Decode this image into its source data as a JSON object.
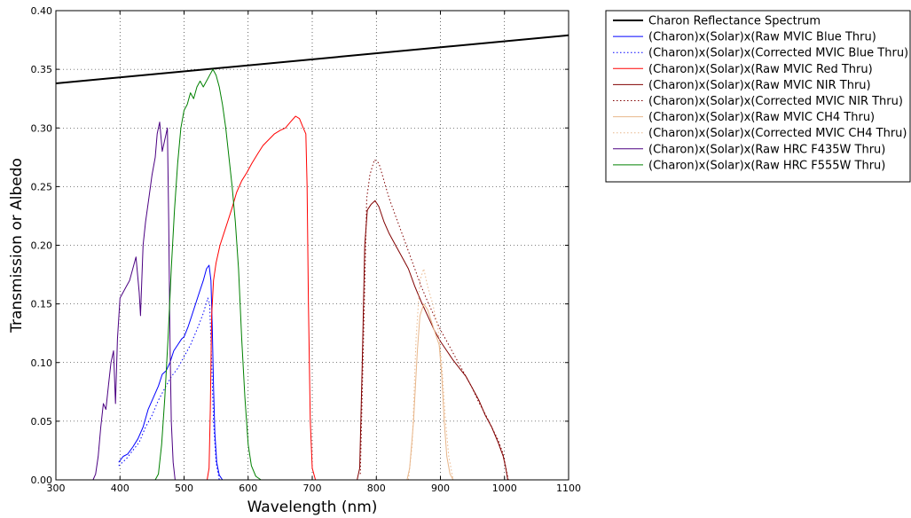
{
  "chart_data": {
    "type": "line",
    "title": "",
    "xlabel": "Wavelength (nm)",
    "ylabel": "Transmission or Albedo",
    "xlim": [
      300,
      1100
    ],
    "ylim": [
      0.0,
      0.4
    ],
    "grid": true,
    "legend_position": "outside-top-right",
    "x_ticks": [
      300,
      400,
      500,
      600,
      700,
      800,
      900,
      1000,
      1100
    ],
    "y_ticks": [
      0.0,
      0.05,
      0.1,
      0.15,
      0.2,
      0.25,
      0.3,
      0.35,
      0.4
    ],
    "x_tick_labels": [
      "300",
      "400",
      "500",
      "600",
      "700",
      "800",
      "900",
      "1000",
      "1100"
    ],
    "y_tick_labels": [
      "0.00",
      "0.05",
      "0.10",
      "0.15",
      "0.20",
      "0.25",
      "0.30",
      "0.35",
      "0.40"
    ],
    "series": [
      {
        "name": "Charon Reflectance Spectrum",
        "color": "#000000",
        "style": "solid",
        "width": 2,
        "points": [
          [
            300,
            0.338
          ],
          [
            1100,
            0.379
          ]
        ]
      },
      {
        "name": "(Charon)x(Solar)x(Raw MVIC Blue Thru)",
        "color": "#0000ff",
        "style": "solid",
        "width": 1,
        "points": [
          [
            398,
            0.015
          ],
          [
            405,
            0.02
          ],
          [
            412,
            0.022
          ],
          [
            420,
            0.028
          ],
          [
            428,
            0.035
          ],
          [
            436,
            0.045
          ],
          [
            444,
            0.06
          ],
          [
            452,
            0.07
          ],
          [
            460,
            0.08
          ],
          [
            466,
            0.09
          ],
          [
            472,
            0.093
          ],
          [
            478,
            0.1
          ],
          [
            484,
            0.11
          ],
          [
            490,
            0.115
          ],
          [
            496,
            0.12
          ],
          [
            500,
            0.122
          ],
          [
            506,
            0.13
          ],
          [
            512,
            0.14
          ],
          [
            518,
            0.15
          ],
          [
            524,
            0.16
          ],
          [
            530,
            0.17
          ],
          [
            535,
            0.18
          ],
          [
            539,
            0.183
          ],
          [
            542,
            0.17
          ],
          [
            544,
            0.13
          ],
          [
            546,
            0.08
          ],
          [
            548,
            0.04
          ],
          [
            551,
            0.015
          ],
          [
            555,
            0.004
          ],
          [
            560,
            0.0
          ]
        ]
      },
      {
        "name": "(Charon)x(Solar)x(Corrected MVIC Blue Thru)",
        "color": "#0000ff",
        "style": "dotted",
        "width": 1,
        "points": [
          [
            398,
            0.012
          ],
          [
            410,
            0.018
          ],
          [
            420,
            0.025
          ],
          [
            430,
            0.032
          ],
          [
            440,
            0.045
          ],
          [
            450,
            0.055
          ],
          [
            460,
            0.068
          ],
          [
            470,
            0.078
          ],
          [
            480,
            0.088
          ],
          [
            490,
            0.095
          ],
          [
            500,
            0.105
          ],
          [
            510,
            0.115
          ],
          [
            520,
            0.128
          ],
          [
            530,
            0.142
          ],
          [
            537,
            0.155
          ],
          [
            540,
            0.15
          ],
          [
            543,
            0.1
          ],
          [
            546,
            0.05
          ],
          [
            550,
            0.015
          ],
          [
            555,
            0.0
          ]
        ]
      },
      {
        "name": "(Charon)x(Solar)x(Raw MVIC Red Thru)",
        "color": "#ff0000",
        "style": "solid",
        "width": 1,
        "points": [
          [
            536,
            0.0
          ],
          [
            539,
            0.01
          ],
          [
            541,
            0.06
          ],
          [
            543,
            0.14
          ],
          [
            546,
            0.17
          ],
          [
            550,
            0.185
          ],
          [
            556,
            0.2
          ],
          [
            562,
            0.21
          ],
          [
            568,
            0.22
          ],
          [
            575,
            0.232
          ],
          [
            582,
            0.245
          ],
          [
            590,
            0.255
          ],
          [
            598,
            0.262
          ],
          [
            606,
            0.27
          ],
          [
            615,
            0.278
          ],
          [
            623,
            0.285
          ],
          [
            632,
            0.29
          ],
          [
            641,
            0.295
          ],
          [
            650,
            0.298
          ],
          [
            658,
            0.3
          ],
          [
            666,
            0.305
          ],
          [
            674,
            0.31
          ],
          [
            680,
            0.308
          ],
          [
            686,
            0.3
          ],
          [
            690,
            0.295
          ],
          [
            692,
            0.25
          ],
          [
            694,
            0.15
          ],
          [
            697,
            0.05
          ],
          [
            700,
            0.01
          ],
          [
            705,
            0.0
          ]
        ]
      },
      {
        "name": "(Charon)x(Solar)x(Raw MVIC NIR Thru)",
        "color": "#800000",
        "style": "solid",
        "width": 1,
        "points": [
          [
            770,
            0.0
          ],
          [
            774,
            0.01
          ],
          [
            778,
            0.1
          ],
          [
            782,
            0.2
          ],
          [
            786,
            0.23
          ],
          [
            792,
            0.235
          ],
          [
            798,
            0.238
          ],
          [
            804,
            0.233
          ],
          [
            812,
            0.22
          ],
          [
            820,
            0.21
          ],
          [
            830,
            0.2
          ],
          [
            840,
            0.19
          ],
          [
            850,
            0.18
          ],
          [
            860,
            0.165
          ],
          [
            870,
            0.152
          ],
          [
            880,
            0.14
          ],
          [
            890,
            0.128
          ],
          [
            900,
            0.118
          ],
          [
            910,
            0.11
          ],
          [
            920,
            0.102
          ],
          [
            930,
            0.095
          ],
          [
            940,
            0.088
          ],
          [
            950,
            0.078
          ],
          [
            960,
            0.068
          ],
          [
            970,
            0.055
          ],
          [
            980,
            0.045
          ],
          [
            990,
            0.032
          ],
          [
            998,
            0.02
          ],
          [
            1002,
            0.01
          ],
          [
            1005,
            0.0
          ]
        ]
      },
      {
        "name": "(Charon)x(Solar)x(Corrected MVIC NIR Thru)",
        "color": "#800000",
        "style": "dotted",
        "width": 1,
        "points": [
          [
            775,
            0.005
          ],
          [
            780,
            0.12
          ],
          [
            785,
            0.24
          ],
          [
            790,
            0.26
          ],
          [
            797,
            0.273
          ],
          [
            804,
            0.27
          ],
          [
            812,
            0.255
          ],
          [
            820,
            0.24
          ],
          [
            830,
            0.225
          ],
          [
            840,
            0.21
          ],
          [
            850,
            0.195
          ],
          [
            860,
            0.18
          ],
          [
            870,
            0.165
          ],
          [
            880,
            0.152
          ],
          [
            890,
            0.14
          ],
          [
            900,
            0.128
          ],
          [
            910,
            0.118
          ],
          [
            920,
            0.108
          ],
          [
            930,
            0.098
          ],
          [
            940,
            0.088
          ],
          [
            950,
            0.078
          ],
          [
            960,
            0.066
          ],
          [
            970,
            0.056
          ],
          [
            980,
            0.045
          ],
          [
            990,
            0.034
          ],
          [
            998,
            0.022
          ],
          [
            1003,
            0.008
          ],
          [
            1006,
            0.0
          ]
        ]
      },
      {
        "name": "(Charon)x(Solar)x(Raw MVIC CH4 Thru)",
        "color": "#e8b78c",
        "style": "solid",
        "width": 1,
        "points": [
          [
            848,
            0.0
          ],
          [
            852,
            0.01
          ],
          [
            858,
            0.05
          ],
          [
            864,
            0.11
          ],
          [
            868,
            0.14
          ],
          [
            874,
            0.15
          ],
          [
            880,
            0.145
          ],
          [
            886,
            0.135
          ],
          [
            892,
            0.125
          ],
          [
            898,
            0.115
          ],
          [
            902,
            0.09
          ],
          [
            906,
            0.05
          ],
          [
            910,
            0.02
          ],
          [
            915,
            0.005
          ],
          [
            920,
            0.0
          ]
        ]
      },
      {
        "name": "(Charon)x(Solar)x(Corrected MVIC CH4 Thru)",
        "color": "#e8b78c",
        "style": "dotted",
        "width": 1,
        "points": [
          [
            850,
            0.0
          ],
          [
            856,
            0.03
          ],
          [
            862,
            0.12
          ],
          [
            868,
            0.17
          ],
          [
            874,
            0.18
          ],
          [
            880,
            0.165
          ],
          [
            888,
            0.15
          ],
          [
            896,
            0.13
          ],
          [
            902,
            0.1
          ],
          [
            908,
            0.05
          ],
          [
            913,
            0.02
          ],
          [
            920,
            0.0
          ]
        ]
      },
      {
        "name": "(Charon)x(Solar)x(Raw HRC F435W Thru)",
        "color": "#4b0082",
        "style": "solid",
        "width": 1,
        "points": [
          [
            358,
            0.0
          ],
          [
            362,
            0.005
          ],
          [
            366,
            0.02
          ],
          [
            370,
            0.045
          ],
          [
            374,
            0.065
          ],
          [
            378,
            0.06
          ],
          [
            382,
            0.08
          ],
          [
            386,
            0.1
          ],
          [
            390,
            0.11
          ],
          [
            393,
            0.065
          ],
          [
            396,
            0.12
          ],
          [
            400,
            0.155
          ],
          [
            405,
            0.16
          ],
          [
            410,
            0.165
          ],
          [
            415,
            0.17
          ],
          [
            420,
            0.18
          ],
          [
            425,
            0.19
          ],
          [
            430,
            0.16
          ],
          [
            432,
            0.14
          ],
          [
            436,
            0.2
          ],
          [
            440,
            0.22
          ],
          [
            445,
            0.24
          ],
          [
            450,
            0.26
          ],
          [
            455,
            0.275
          ],
          [
            458,
            0.295
          ],
          [
            462,
            0.305
          ],
          [
            466,
            0.28
          ],
          [
            470,
            0.29
          ],
          [
            474,
            0.3
          ],
          [
            476,
            0.22
          ],
          [
            478,
            0.12
          ],
          [
            480,
            0.05
          ],
          [
            483,
            0.015
          ],
          [
            486,
            0.0
          ]
        ]
      },
      {
        "name": "(Charon)x(Solar)x(Raw HRC F555W Thru)",
        "color": "#008000",
        "style": "solid",
        "width": 1,
        "points": [
          [
            455,
            0.0
          ],
          [
            460,
            0.005
          ],
          [
            465,
            0.03
          ],
          [
            470,
            0.07
          ],
          [
            475,
            0.12
          ],
          [
            480,
            0.18
          ],
          [
            485,
            0.23
          ],
          [
            490,
            0.27
          ],
          [
            495,
            0.3
          ],
          [
            500,
            0.315
          ],
          [
            505,
            0.32
          ],
          [
            510,
            0.33
          ],
          [
            515,
            0.325
          ],
          [
            520,
            0.335
          ],
          [
            525,
            0.34
          ],
          [
            530,
            0.335
          ],
          [
            535,
            0.34
          ],
          [
            540,
            0.345
          ],
          [
            545,
            0.35
          ],
          [
            550,
            0.345
          ],
          [
            555,
            0.335
          ],
          [
            560,
            0.32
          ],
          [
            565,
            0.3
          ],
          [
            570,
            0.275
          ],
          [
            575,
            0.25
          ],
          [
            580,
            0.22
          ],
          [
            585,
            0.18
          ],
          [
            590,
            0.12
          ],
          [
            595,
            0.07
          ],
          [
            600,
            0.03
          ],
          [
            605,
            0.012
          ],
          [
            612,
            0.003
          ],
          [
            620,
            0.0
          ]
        ]
      }
    ]
  }
}
